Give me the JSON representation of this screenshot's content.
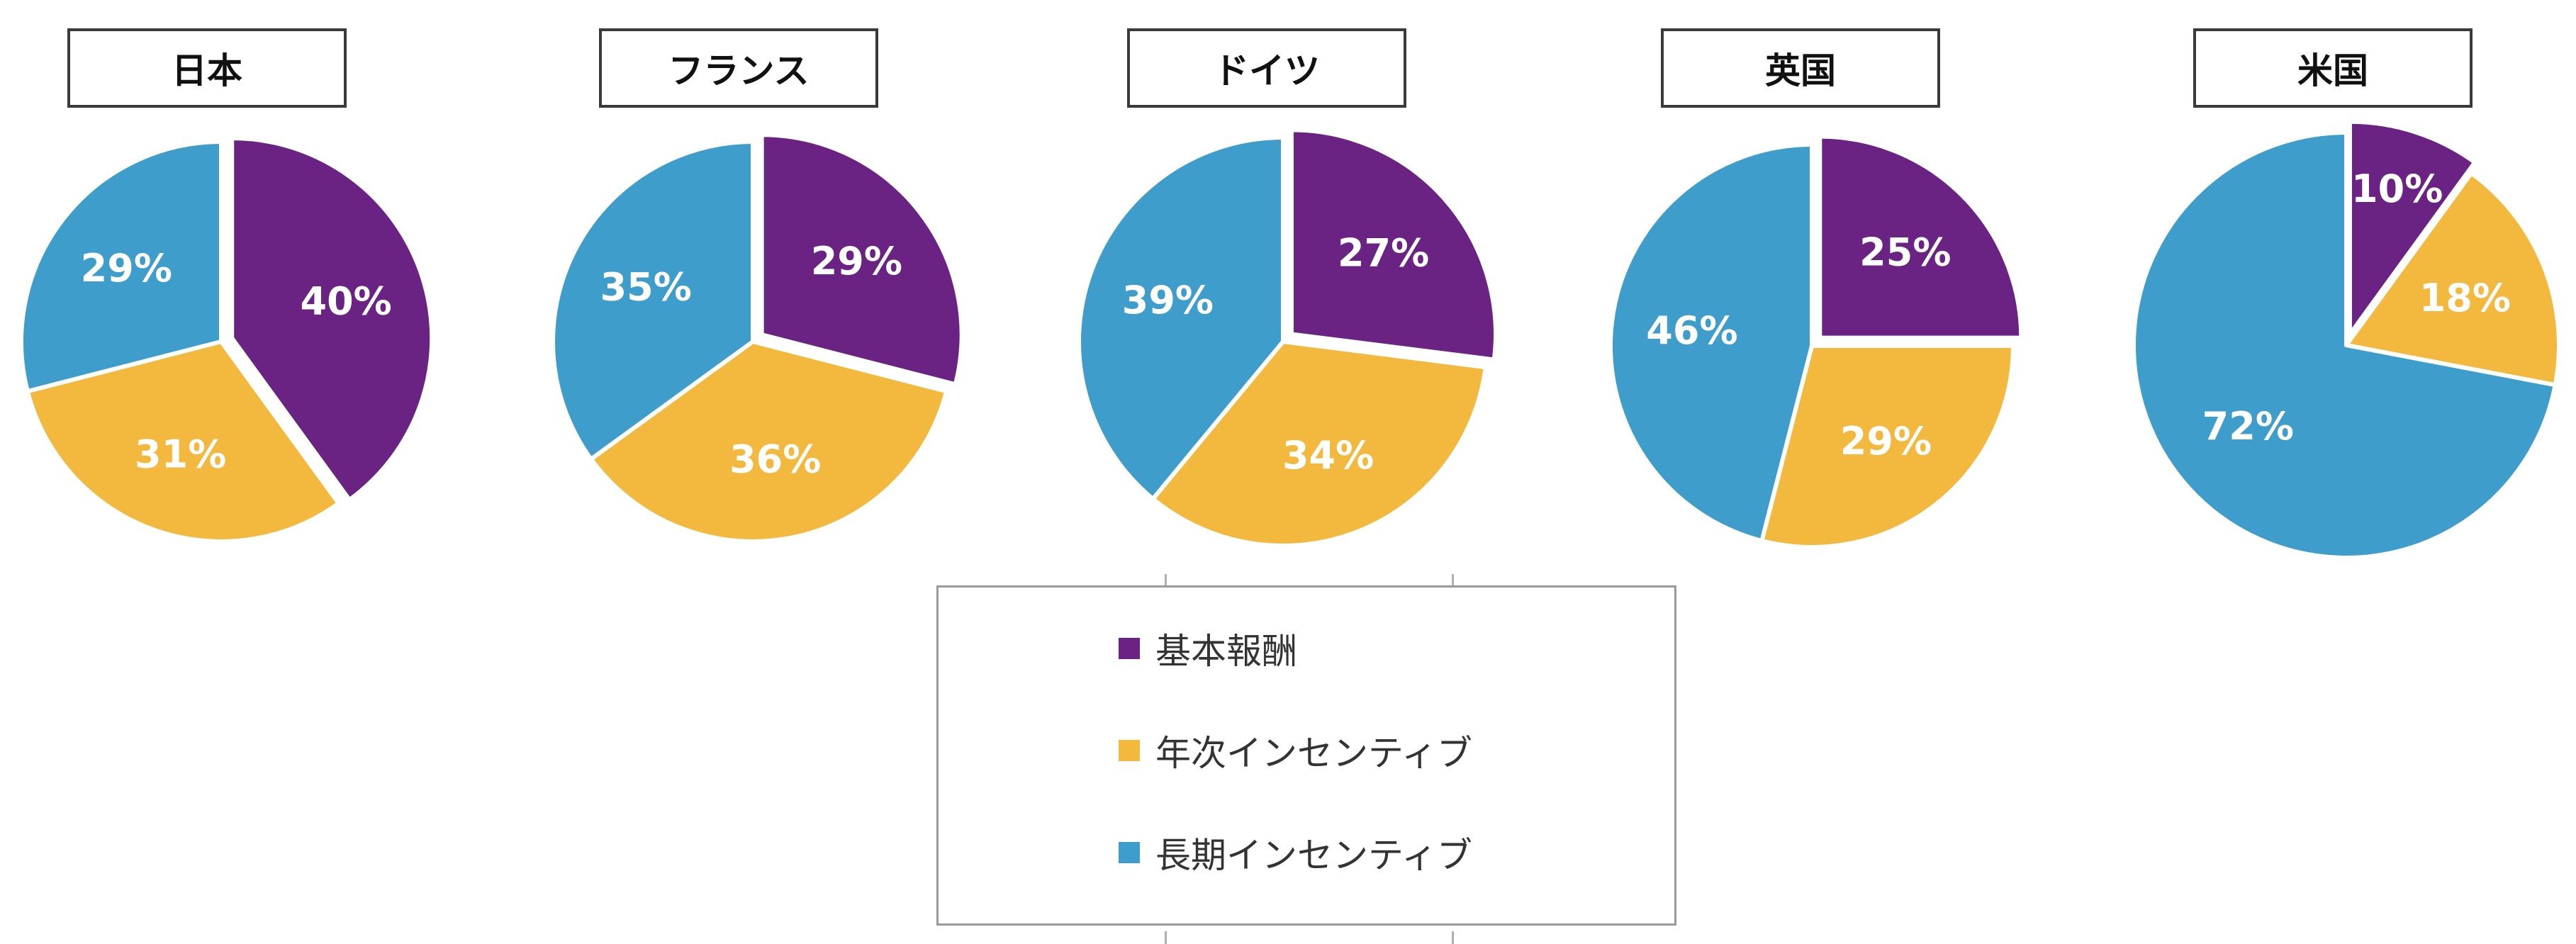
{
  "chart_data": {
    "type": "pie",
    "legend": {
      "position": "bottom-center",
      "entries": [
        {
          "name": "基本報酬",
          "color": "#6b2383"
        },
        {
          "name": "年次インセンティブ",
          "color": "#f2b93e"
        },
        {
          "name": "長期インセンティブ",
          "color": "#3f9dcc"
        }
      ]
    },
    "charts": [
      {
        "title": "日本",
        "values": [
          40,
          31,
          29
        ],
        "labels": [
          "40%",
          "31%",
          "29%"
        ]
      },
      {
        "title": "フランス",
        "values": [
          29,
          36,
          35
        ],
        "labels": [
          "29%",
          "36%",
          "35%"
        ]
      },
      {
        "title": "ドイツ",
        "values": [
          27,
          34,
          39
        ],
        "labels": [
          "27%",
          "34%",
          "39%"
        ]
      },
      {
        "title": "英国",
        "values": [
          25,
          29,
          46
        ],
        "labels": [
          "25%",
          "29%",
          "46%"
        ]
      },
      {
        "title": "米国",
        "values": [
          10,
          18,
          72
        ],
        "labels": [
          "10%",
          "18%",
          "72%"
        ]
      }
    ]
  }
}
